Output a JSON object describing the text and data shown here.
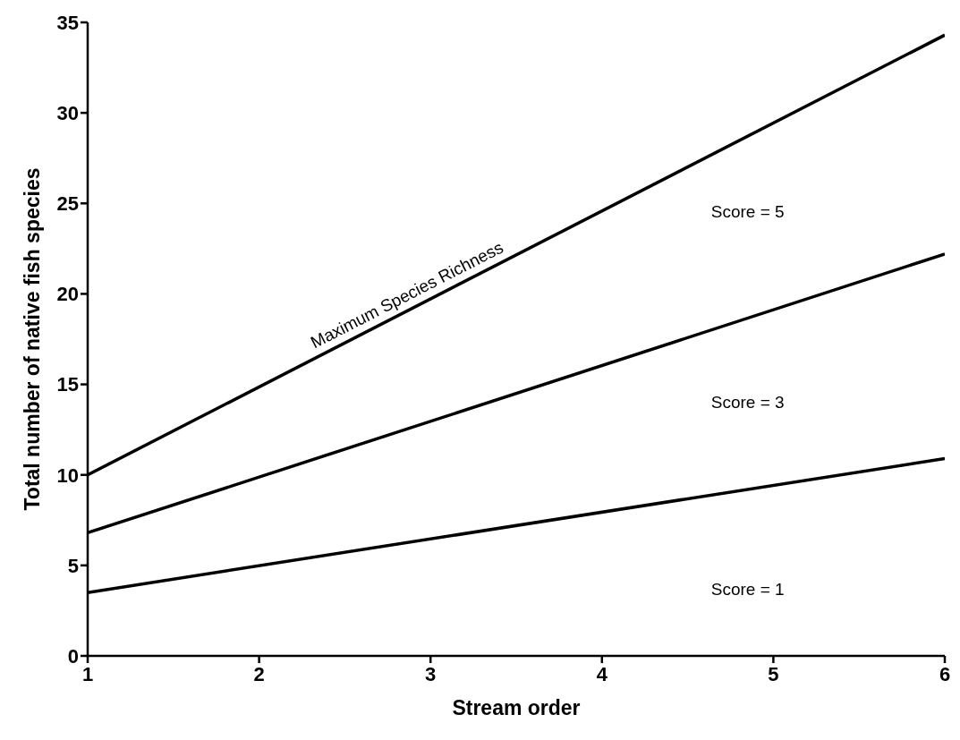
{
  "chart_data": {
    "type": "line",
    "xlabel": "Stream order",
    "ylabel": "Total number of native fish species",
    "xlim": [
      1,
      6
    ],
    "xticks": [
      1,
      2,
      3,
      4,
      5,
      6
    ],
    "ylim": [
      0,
      35
    ],
    "yticks": [
      0,
      5,
      10,
      15,
      20,
      25,
      30,
      35
    ],
    "x": [
      1,
      6
    ],
    "grid": false,
    "legend": false,
    "marker": "none",
    "line_style": "solid",
    "series": [
      {
        "color": "#000000",
        "values": [
          10,
          34.3
        ]
      },
      {
        "color": "#000000",
        "values": [
          6.8,
          22.2
        ]
      },
      {
        "color": "#000000",
        "values": [
          3.5,
          10.9
        ]
      }
    ],
    "annotations": [
      "Maximum Species Richness",
      "Score = 5",
      "Score = 3",
      "Score = 1"
    ]
  }
}
